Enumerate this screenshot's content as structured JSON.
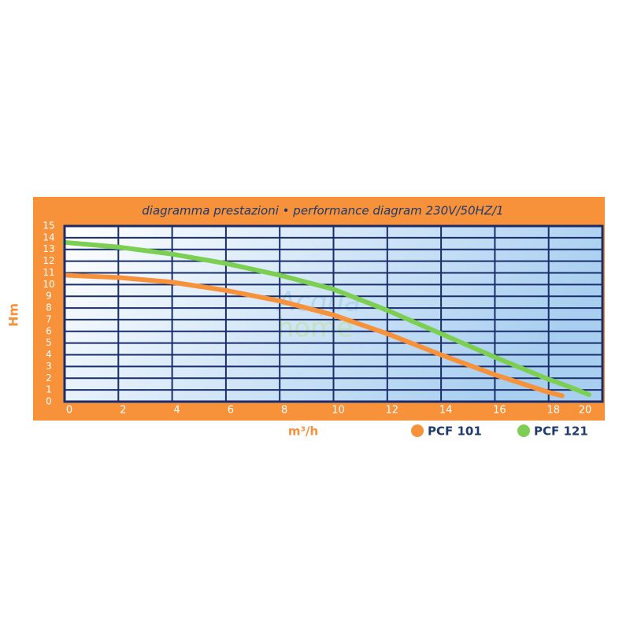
{
  "chart_data": {
    "type": "line",
    "title": "diagramma prestazioni • performance diagram 230V/50HZ/1",
    "x_label": "m³/h",
    "y_label": "Hm",
    "watermark": [
      "Acqua",
      "home"
    ],
    "x": [
      0,
      2,
      4,
      6,
      8,
      10,
      12,
      14,
      16,
      18,
      18.5,
      19.5
    ],
    "series": [
      {
        "name": "PCF 101",
        "color": "#f7913a",
        "values": [
          10.8,
          10.6,
          10.2,
          9.5,
          8.6,
          7.4,
          5.8,
          4.0,
          2.3,
          0.8,
          0.5,
          null
        ]
      },
      {
        "name": "PCF 121",
        "color": "#7ccf52",
        "values": [
          13.6,
          13.2,
          12.6,
          11.8,
          10.8,
          9.6,
          7.8,
          5.8,
          3.8,
          1.9,
          1.5,
          0.6
        ]
      }
    ],
    "xlim": [
      0,
      20
    ],
    "xticks": [
      0,
      2,
      4,
      6,
      8,
      10,
      12,
      14,
      16,
      18,
      20
    ],
    "ylim": [
      0,
      15
    ],
    "yticks": [
      0,
      1,
      2,
      3,
      4,
      5,
      6,
      7,
      8,
      9,
      10,
      11,
      12,
      13,
      14,
      15
    ],
    "grid": true,
    "legend": "bottom-right"
  }
}
